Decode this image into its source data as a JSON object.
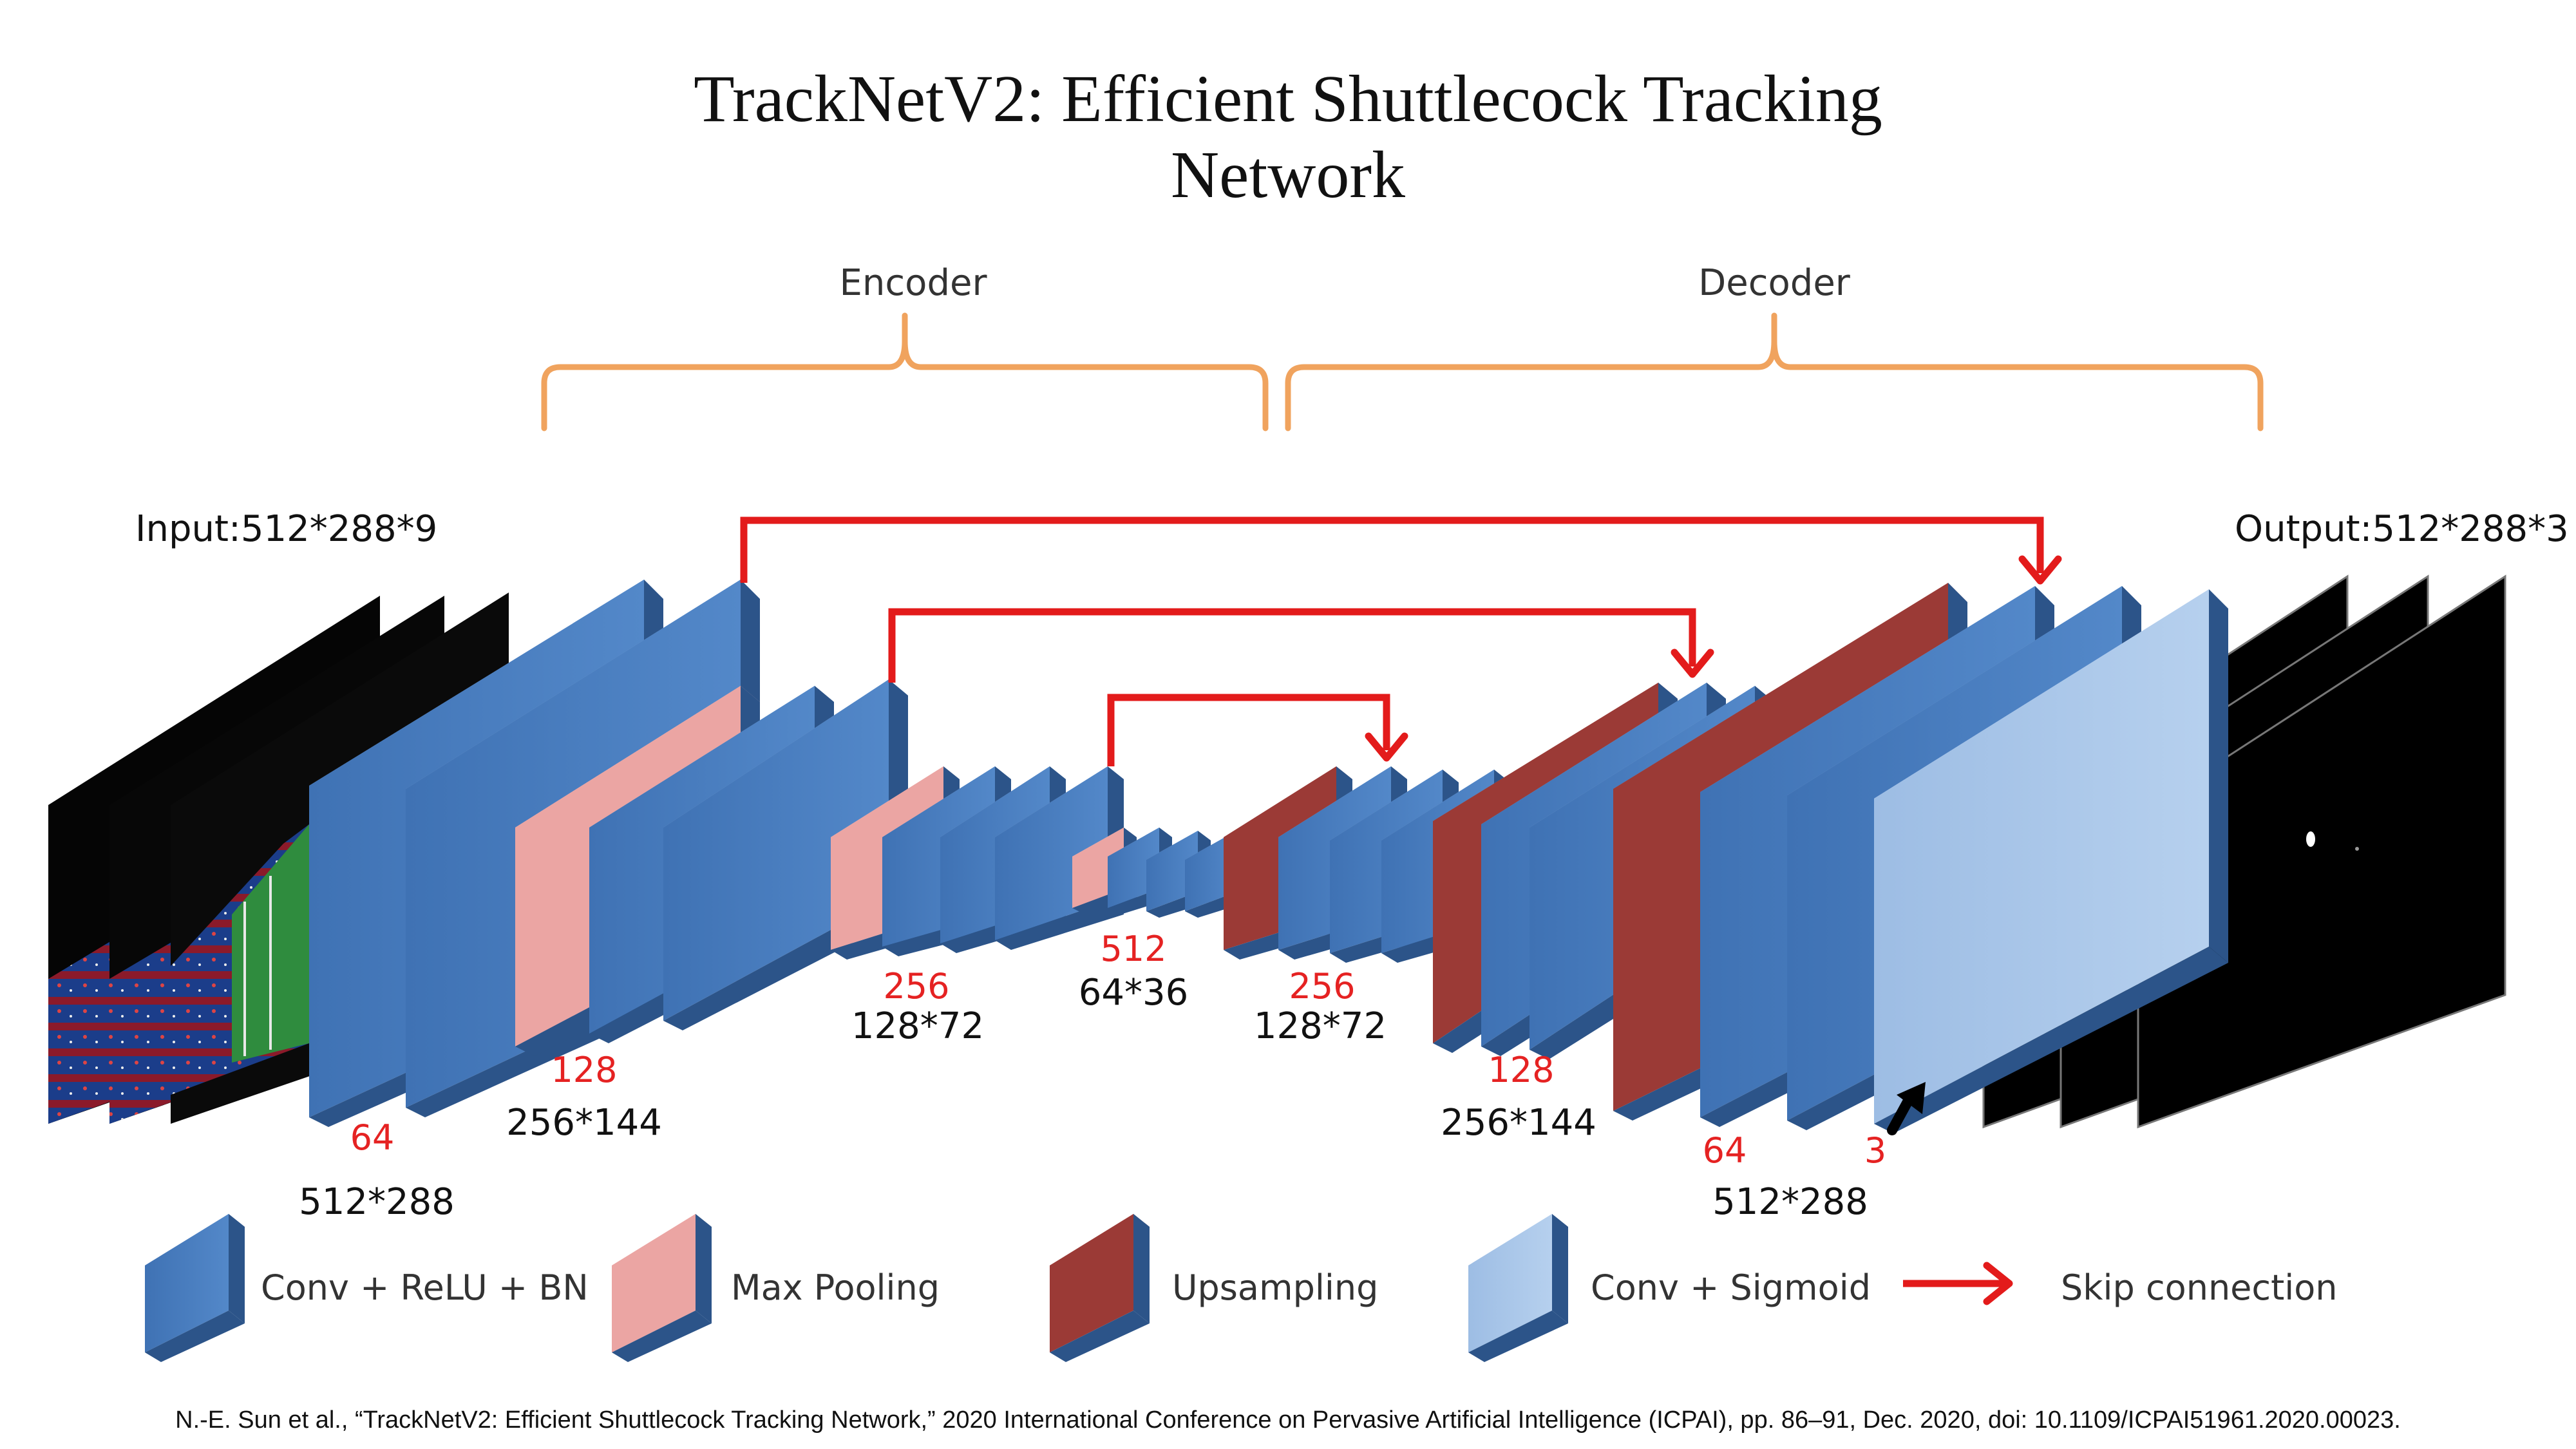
{
  "title": {
    "line1": "TrackNetV2: Efficient Shuttlecock Tracking",
    "line2": "Network"
  },
  "sections": {
    "encoder": "Encoder",
    "decoder": "Decoder"
  },
  "io": {
    "input": "Input:512*288*9",
    "output": "Output:512*288*3"
  },
  "channels": {
    "enc_64": "64",
    "enc_128": "128",
    "enc_256": "256",
    "bottleneck_512": "512",
    "dec_256": "256",
    "dec_128": "128",
    "dec_64": "64",
    "out_3": "3"
  },
  "dims": {
    "enc_512x288": "512*288",
    "enc_256x144": "256*144",
    "enc_128x72": "128*72",
    "bottleneck_64x36": "64*36",
    "dec_128x72": "128*72",
    "dec_256x144": "256*144",
    "dec_512x288": "512*288"
  },
  "legend": {
    "conv": "Conv + ReLU + BN",
    "pool": "Max Pooling",
    "upsample": "Upsampling",
    "sigmoid": "Conv + Sigmoid",
    "skip": "Skip connection"
  },
  "colors": {
    "conv_blue": "#4a7fc1",
    "pool_pink": "#eba5a3",
    "upsample_red": "#9b3a36",
    "sigmoid_light": "#a9c5e8",
    "skip_red": "#e31b1b",
    "bracket_orange": "#f0a35e",
    "channel_label_red": "#e52222"
  },
  "citation": "N.-E. Sun et al., “TrackNetV2: Efficient Shuttlecock Tracking Network,” 2020 International Conference on Pervasive Artificial Intelligence (ICPAI), pp. 86–91, Dec. 2020, doi: 10.1109/ICPAI51961.2020.00023."
}
